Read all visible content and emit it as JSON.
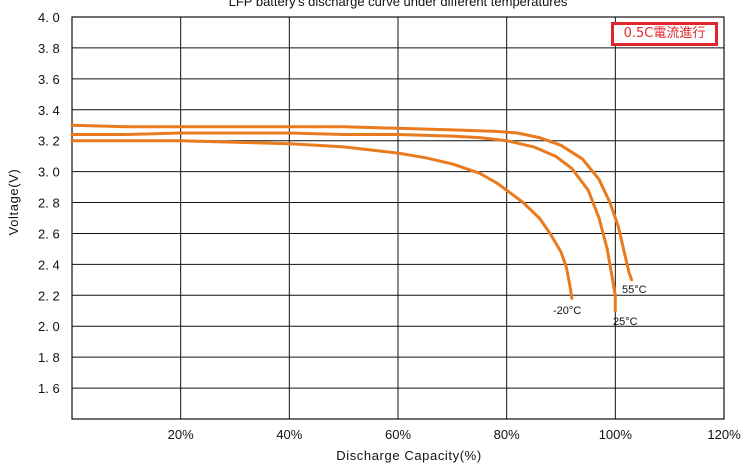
{
  "chart_data": {
    "type": "line",
    "title": "LFP battery's discharge curve under different temperatures",
    "xlabel": "Discharge Capacity(%)",
    "ylabel": "Voltage(V)",
    "xlim": [
      0,
      120
    ],
    "ylim": [
      1.4,
      4.0
    ],
    "grid": true,
    "x_ticks": [
      "20%",
      "40%",
      "60%",
      "80%",
      "100%",
      "120%"
    ],
    "y_ticks": [
      "4.0",
      "3.8",
      "3.6",
      "3.4",
      "3.2",
      "3.0",
      "2.8",
      "2.6",
      "2.4",
      "2.2",
      "2.0",
      "1.8",
      "1.6"
    ],
    "annotation": "0.5C電流進行",
    "line_color": "#ea7a1e",
    "series": [
      {
        "name": "55°C",
        "x": [
          0,
          10,
          20,
          30,
          40,
          50,
          60,
          70,
          78,
          82,
          86,
          90,
          94,
          97,
          99,
          100.5,
          101.5,
          102.5,
          103
        ],
        "y": [
          3.3,
          3.29,
          3.29,
          3.29,
          3.29,
          3.29,
          3.28,
          3.27,
          3.26,
          3.25,
          3.22,
          3.17,
          3.08,
          2.95,
          2.8,
          2.65,
          2.5,
          2.35,
          2.3
        ]
      },
      {
        "name": "25°C",
        "x": [
          0,
          10,
          20,
          30,
          40,
          50,
          60,
          70,
          75,
          80,
          85,
          89,
          92,
          95,
          97,
          98.5,
          99.5,
          100,
          100
        ],
        "y": [
          3.24,
          3.24,
          3.25,
          3.25,
          3.25,
          3.24,
          3.24,
          3.23,
          3.22,
          3.2,
          3.16,
          3.1,
          3.02,
          2.88,
          2.7,
          2.5,
          2.3,
          2.2,
          2.1
        ]
      },
      {
        "name": "-20°C",
        "x": [
          0,
          10,
          20,
          30,
          40,
          45,
          50,
          55,
          60,
          65,
          70,
          75,
          78,
          80,
          83,
          86,
          88,
          90,
          91,
          91.6,
          92
        ],
        "y": [
          3.2,
          3.2,
          3.2,
          3.19,
          3.18,
          3.17,
          3.16,
          3.14,
          3.12,
          3.09,
          3.05,
          2.99,
          2.93,
          2.88,
          2.8,
          2.7,
          2.6,
          2.48,
          2.38,
          2.27,
          2.18
        ]
      }
    ]
  }
}
